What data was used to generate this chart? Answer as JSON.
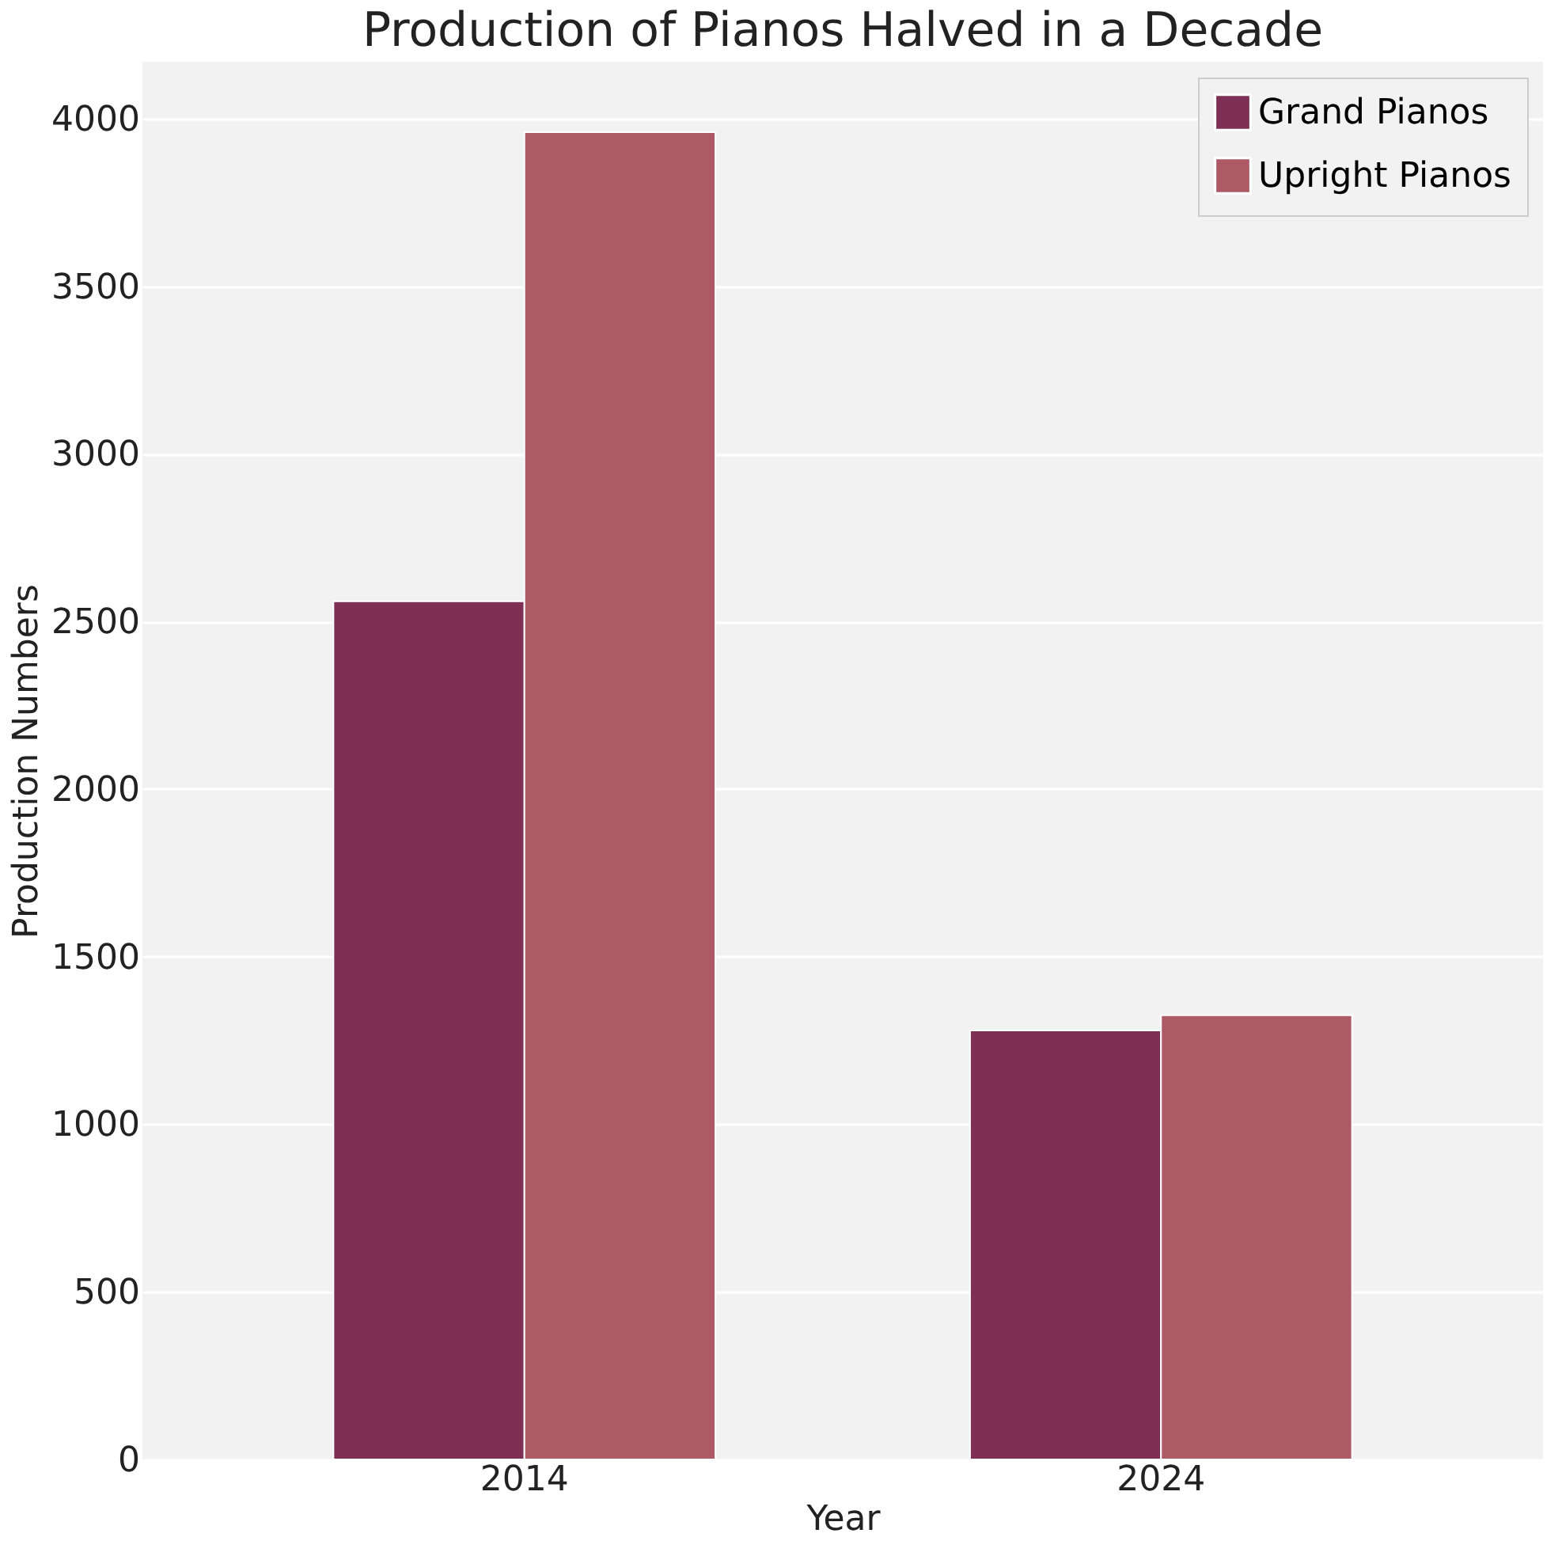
{
  "chart_data": {
    "type": "bar",
    "title": "Production of Pianos Halved in a Decade",
    "xlabel": "Year",
    "ylabel": "Production Numbers",
    "categories": [
      "2014",
      "2024"
    ],
    "series": [
      {
        "name": "Grand Pianos",
        "color": "#7e2f56",
        "values": [
          2560,
          1280
        ]
      },
      {
        "name": "Upright Pianos",
        "color": "#ad5a66",
        "values": [
          3960,
          1325
        ]
      }
    ],
    "ylim": [
      0,
      4170
    ],
    "yticks": [
      0,
      500,
      1000,
      1500,
      2000,
      2500,
      3000,
      3500,
      4000
    ],
    "grid": "y",
    "legend": "top right"
  }
}
